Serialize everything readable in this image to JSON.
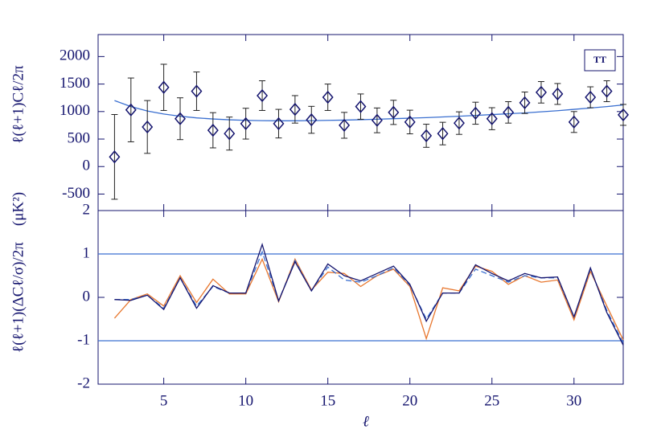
{
  "chart_data": [
    {
      "type": "errorbar",
      "ylabel": "ℓ(ℓ+1)Cℓ/2π",
      "yunit": "(μK²)",
      "x": [
        2,
        3,
        4,
        5,
        6,
        7,
        8,
        9,
        10,
        11,
        12,
        13,
        14,
        15,
        16,
        17,
        18,
        19,
        20,
        21,
        22,
        23,
        24,
        25,
        26,
        27,
        28,
        29,
        30,
        31,
        32,
        33
      ],
      "xlim": [
        1,
        33
      ],
      "ylim": [
        -800,
        2400
      ],
      "yticks": [
        -500,
        0,
        500,
        1000,
        1500,
        2000
      ],
      "series": [
        {
          "name": "TT",
          "color": "#14146e",
          "error_color": "#222222",
          "values": [
            176,
            1030,
            720,
            1440,
            870,
            1370,
            660,
            600,
            780,
            1290,
            780,
            1040,
            850,
            1260,
            750,
            1090,
            840,
            985,
            810,
            560,
            600,
            790,
            970,
            870,
            985,
            1160,
            1350,
            1320,
            810,
            1260,
            1370,
            940
          ],
          "errors": [
            770,
            580,
            480,
            420,
            380,
            350,
            320,
            300,
            280,
            270,
            260,
            250,
            245,
            240,
            235,
            230,
            225,
            220,
            215,
            210,
            205,
            205,
            200,
            200,
            195,
            195,
            195,
            190,
            190,
            190,
            190,
            190
          ]
        }
      ],
      "curve": {
        "color": "#3a6fd0",
        "values": [
          1200,
          1090,
          1010,
          955,
          915,
          885,
          865,
          850,
          840,
          835,
          832,
          832,
          835,
          840,
          845,
          852,
          860,
          870,
          880,
          890,
          902,
          915,
          930,
          945,
          960,
          975,
          995,
          1015,
          1040,
          1065,
          1090,
          1120
        ]
      }
    },
    {
      "type": "line",
      "ylabel": "ℓ(ℓ+1)(ΔCℓ/σ)/2π",
      "xlabel": "ℓ",
      "x": [
        2,
        3,
        4,
        5,
        6,
        7,
        8,
        9,
        10,
        11,
        12,
        13,
        14,
        15,
        16,
        17,
        18,
        19,
        20,
        21,
        22,
        23,
        24,
        25,
        26,
        27,
        28,
        29,
        30,
        31,
        32,
        33
      ],
      "xlim": [
        1,
        33
      ],
      "xticks": [
        5,
        10,
        15,
        20,
        25,
        30
      ],
      "ylim": [
        -2,
        2
      ],
      "yticks": [
        -2,
        -1,
        0,
        1,
        2
      ],
      "hlines": [
        1,
        -1
      ],
      "hline_color": "#3a6fd0",
      "series": [
        {
          "color": "#e8772e",
          "dash": false,
          "values": [
            -0.48,
            -0.05,
            0.08,
            -0.2,
            0.5,
            -0.12,
            0.42,
            0.08,
            0.08,
            0.88,
            -0.1,
            0.88,
            0.17,
            0.58,
            0.55,
            0.25,
            0.5,
            0.65,
            0.25,
            -0.95,
            0.22,
            0.15,
            0.72,
            0.6,
            0.3,
            0.5,
            0.35,
            0.4,
            -0.52,
            0.6,
            -0.2,
            -0.98
          ]
        },
        {
          "color": "#3a6fd0",
          "dash": true,
          "values": [
            -0.05,
            -0.05,
            0.05,
            -0.25,
            0.45,
            -0.2,
            0.25,
            0.1,
            0.1,
            1.05,
            -0.08,
            0.85,
            0.15,
            0.7,
            0.4,
            0.35,
            0.5,
            0.68,
            0.28,
            -0.5,
            0.1,
            0.1,
            0.65,
            0.5,
            0.35,
            0.5,
            0.45,
            0.45,
            -0.45,
            0.65,
            -0.3,
            -1.05
          ]
        },
        {
          "color": "#14146e",
          "dash": false,
          "values": [
            -0.05,
            -0.07,
            0.05,
            -0.28,
            0.45,
            -0.25,
            0.27,
            0.1,
            0.1,
            1.22,
            -0.08,
            0.82,
            0.15,
            0.77,
            0.5,
            0.38,
            0.55,
            0.72,
            0.3,
            -0.55,
            0.1,
            0.1,
            0.75,
            0.55,
            0.38,
            0.55,
            0.45,
            0.47,
            -0.45,
            0.68,
            -0.35,
            -1.1
          ]
        }
      ]
    }
  ]
}
